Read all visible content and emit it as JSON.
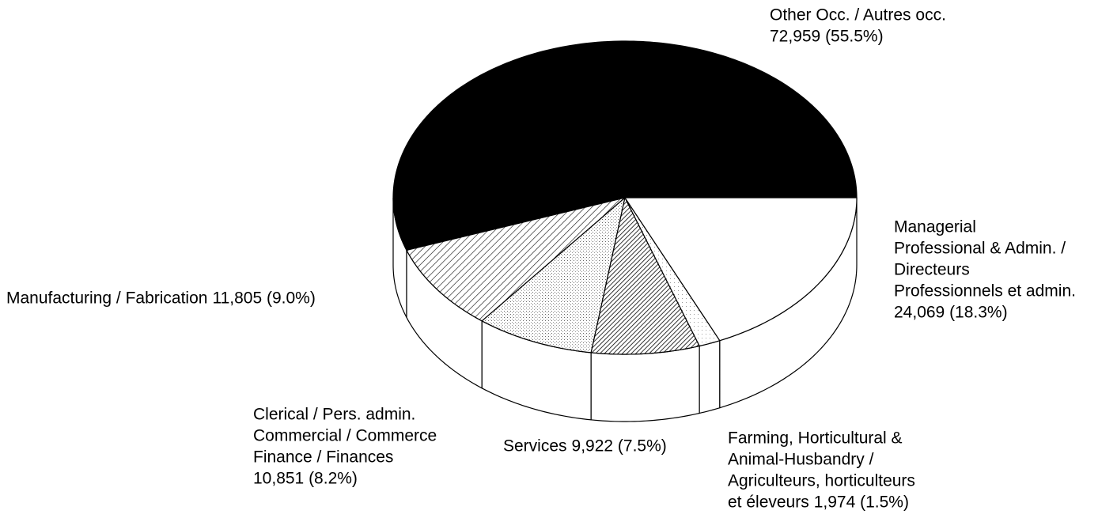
{
  "chart_data": {
    "type": "pie",
    "categories": [
      [
        "Other Occ. / Autres occ."
      ],
      [
        "Manufacturing / Fabrication"
      ],
      [
        "Clerical / Pers. admin.",
        "Commercial / Commerce",
        "Finance / Finances"
      ],
      [
        "Services"
      ],
      [
        "Farming, Horticultural &",
        "Animal-Husbandry /",
        "Agriculteurs, horticulteurs",
        "et éleveurs"
      ],
      [
        "Managerial",
        "Professional & Admin. /",
        "Directeurs",
        "Professionnels et admin."
      ]
    ],
    "values": [
      72959,
      11805,
      10851,
      9922,
      1974,
      24069
    ],
    "value_labels": [
      "72,959 (55.5%)",
      "11,805 (9.0%)",
      "10,851 (8.2%)",
      "9,922 (7.5%)",
      "1,974 (1.5%)",
      "24,069 (18.3%)"
    ],
    "colors": [
      "#000000",
      "url(#p-hatch)",
      "url(#p-dots)",
      "url(#p-dense)",
      "url(#p-light)",
      "#ffffff"
    ]
  }
}
